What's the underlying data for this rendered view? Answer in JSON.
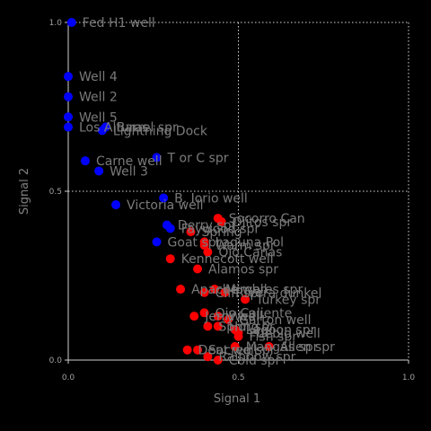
{
  "chart_data": {
    "type": "scatter",
    "xlabel": "Signal 1",
    "ylabel": "Signal 2",
    "xlim": [
      0,
      1
    ],
    "ylim": [
      0,
      1
    ],
    "x_ticks": [
      "0.0",
      "0.5",
      "1.0"
    ],
    "y_ticks": [
      "0.0",
      "0.5",
      "1.0"
    ],
    "grid": true,
    "background": "#000000",
    "series": [
      {
        "color": "#0000ff",
        "points": [
          {
            "x": 0.01,
            "y": 1.0,
            "label": "Fed H1 well"
          },
          {
            "x": 0.0,
            "y": 0.84,
            "label": "Well 4"
          },
          {
            "x": 0.0,
            "y": 0.78,
            "label": "Well 2"
          },
          {
            "x": 0.0,
            "y": 0.72,
            "label": "Well 5"
          },
          {
            "x": 0.0,
            "y": 0.69,
            "label": "Los Alturas"
          },
          {
            "x": 0.11,
            "y": 0.69,
            "label": "Barrel spr"
          },
          {
            "x": 0.1,
            "y": 0.68,
            "label": "Lightning Dock"
          },
          {
            "x": 0.05,
            "y": 0.59,
            "label": "Carne well"
          },
          {
            "x": 0.26,
            "y": 0.6,
            "label": "T or C spr"
          },
          {
            "x": 0.09,
            "y": 0.56,
            "label": "Well 3"
          },
          {
            "x": 0.28,
            "y": 0.48,
            "label": "B. Iorio well"
          },
          {
            "x": 0.14,
            "y": 0.46,
            "label": "Victoria well"
          },
          {
            "x": 0.29,
            "y": 0.4,
            "label": "Derry spr"
          },
          {
            "x": 0.3,
            "y": 0.39,
            "label": "Faywood spr"
          },
          {
            "x": 0.26,
            "y": 0.35,
            "label": "Goat spr"
          }
        ]
      },
      {
        "color": "#ff0000",
        "points": [
          {
            "x": 0.44,
            "y": 0.42,
            "label": "Socorro Can"
          },
          {
            "x": 0.45,
            "y": 0.41,
            "label": "Ojitos spr"
          },
          {
            "x": 0.36,
            "y": 0.38,
            "label": "Spring"
          },
          {
            "x": 0.4,
            "y": 0.35,
            "label": "Laguna Pol"
          },
          {
            "x": 0.4,
            "y": 0.34,
            "label": "Warm spr"
          },
          {
            "x": 0.41,
            "y": 0.32,
            "label": "Ojo Canas"
          },
          {
            "x": 0.3,
            "y": 0.3,
            "label": "Kennecott well"
          },
          {
            "x": 0.38,
            "y": 0.27,
            "label": "Alamos spr"
          },
          {
            "x": 0.33,
            "y": 0.21,
            "label": "Apache well"
          },
          {
            "x": 0.43,
            "y": 0.21,
            "label": "Mimbres spr"
          },
          {
            "x": 0.4,
            "y": 0.2,
            "label": "Cliff spr"
          },
          {
            "x": 0.46,
            "y": 0.2,
            "label": "Rivera dunkel"
          },
          {
            "x": 0.52,
            "y": 0.18,
            "label": "Turkey spr"
          },
          {
            "x": 0.4,
            "y": 0.14,
            "label": "Ojo Caliente"
          },
          {
            "x": 0.37,
            "y": 0.13,
            "label": "Jerry well"
          },
          {
            "x": 0.44,
            "y": 0.13,
            "label": "Well"
          },
          {
            "x": 0.47,
            "y": 0.12,
            "label": "Garton well"
          },
          {
            "x": 0.41,
            "y": 0.1,
            "label": "Spring 2"
          },
          {
            "x": 0.44,
            "y": 0.1,
            "label": "Hot spr"
          },
          {
            "x": 0.49,
            "y": 0.09,
            "label": "Lagoon spr"
          },
          {
            "x": 0.5,
            "y": 0.08,
            "label": "Pueblo well"
          },
          {
            "x": 0.5,
            "y": 0.07,
            "label": "Fish spr"
          },
          {
            "x": 0.49,
            "y": 0.04,
            "label": "Mangas spr"
          },
          {
            "x": 0.59,
            "y": 0.04,
            "label": "Allen spr"
          },
          {
            "x": 0.38,
            "y": 0.03,
            "label": "Sacred spr"
          },
          {
            "x": 0.35,
            "y": 0.03,
            "label": "Dent well"
          },
          {
            "x": 0.41,
            "y": 0.01,
            "label": "Rainbow spr"
          },
          {
            "x": 0.44,
            "y": 0.0,
            "label": "Cold spr"
          }
        ]
      }
    ]
  }
}
